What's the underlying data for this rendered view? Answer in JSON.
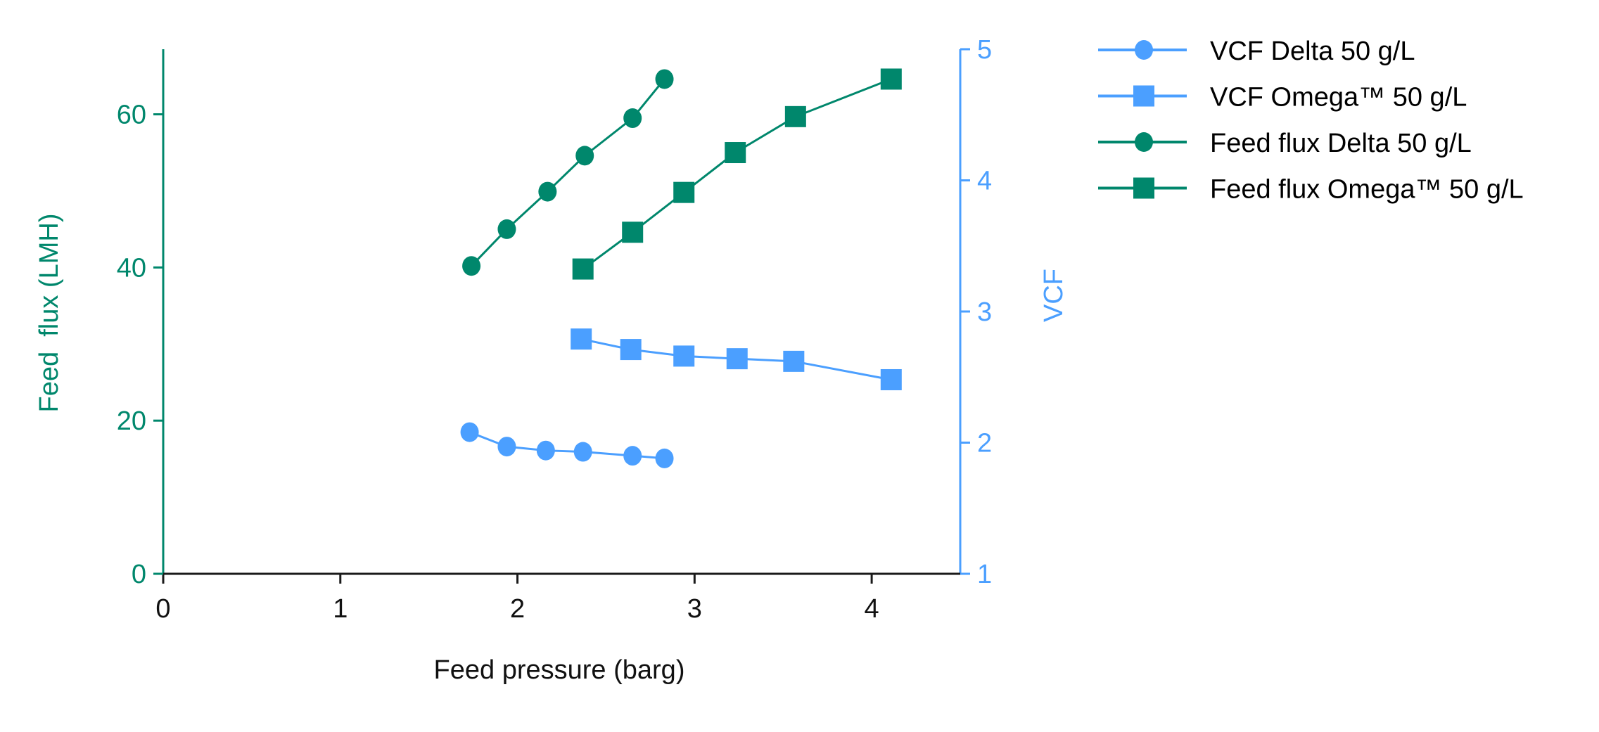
{
  "chart_data": {
    "type": "line",
    "title": "",
    "xlabel": "Feed pressure (barg)",
    "ylabel": "Feed  flux (LMH)",
    "y2label": "VCF",
    "xlim": [
      0,
      4.5
    ],
    "ylim": [
      0,
      68.5
    ],
    "y2lim": [
      1,
      5
    ],
    "xticks": [
      0,
      1,
      2,
      3,
      4
    ],
    "yticks": [
      0,
      20,
      40,
      60
    ],
    "y2ticks": [
      1,
      2,
      3,
      4,
      5
    ],
    "grid": false,
    "legend_position": "right-outside-top",
    "colors": {
      "vcf": "#4b9fff",
      "flux": "#00876c",
      "axis": "#1a1a1a"
    },
    "series": [
      {
        "name": "VCF Delta 50 g/L",
        "axis": "right",
        "marker": "circle",
        "color": "#4b9fff",
        "x": [
          1.73,
          1.94,
          2.16,
          2.37,
          2.65,
          2.83
        ],
        "y": [
          2.08,
          1.97,
          1.94,
          1.93,
          1.9,
          1.88
        ]
      },
      {
        "name": "VCF Omega™ 50 g/L",
        "axis": "right",
        "marker": "square",
        "color": "#4b9fff",
        "x": [
          2.36,
          2.64,
          2.94,
          3.24,
          3.56,
          4.11
        ],
        "y": [
          2.79,
          2.71,
          2.66,
          2.64,
          2.62,
          2.48
        ]
      },
      {
        "name": "Feed flux Delta 50 g/L",
        "axis": "left",
        "marker": "circle",
        "color": "#00876c",
        "x": [
          1.74,
          1.94,
          2.17,
          2.38,
          2.65,
          2.83
        ],
        "y": [
          40.2,
          45.0,
          49.9,
          54.6,
          59.5,
          64.6
        ]
      },
      {
        "name": "Feed flux Omega™ 50 g/L",
        "axis": "left",
        "marker": "square",
        "color": "#00876c",
        "x": [
          2.37,
          2.65,
          2.94,
          3.23,
          3.57,
          4.11
        ],
        "y": [
          39.8,
          44.6,
          49.8,
          55.0,
          59.7,
          64.6
        ]
      }
    ]
  }
}
